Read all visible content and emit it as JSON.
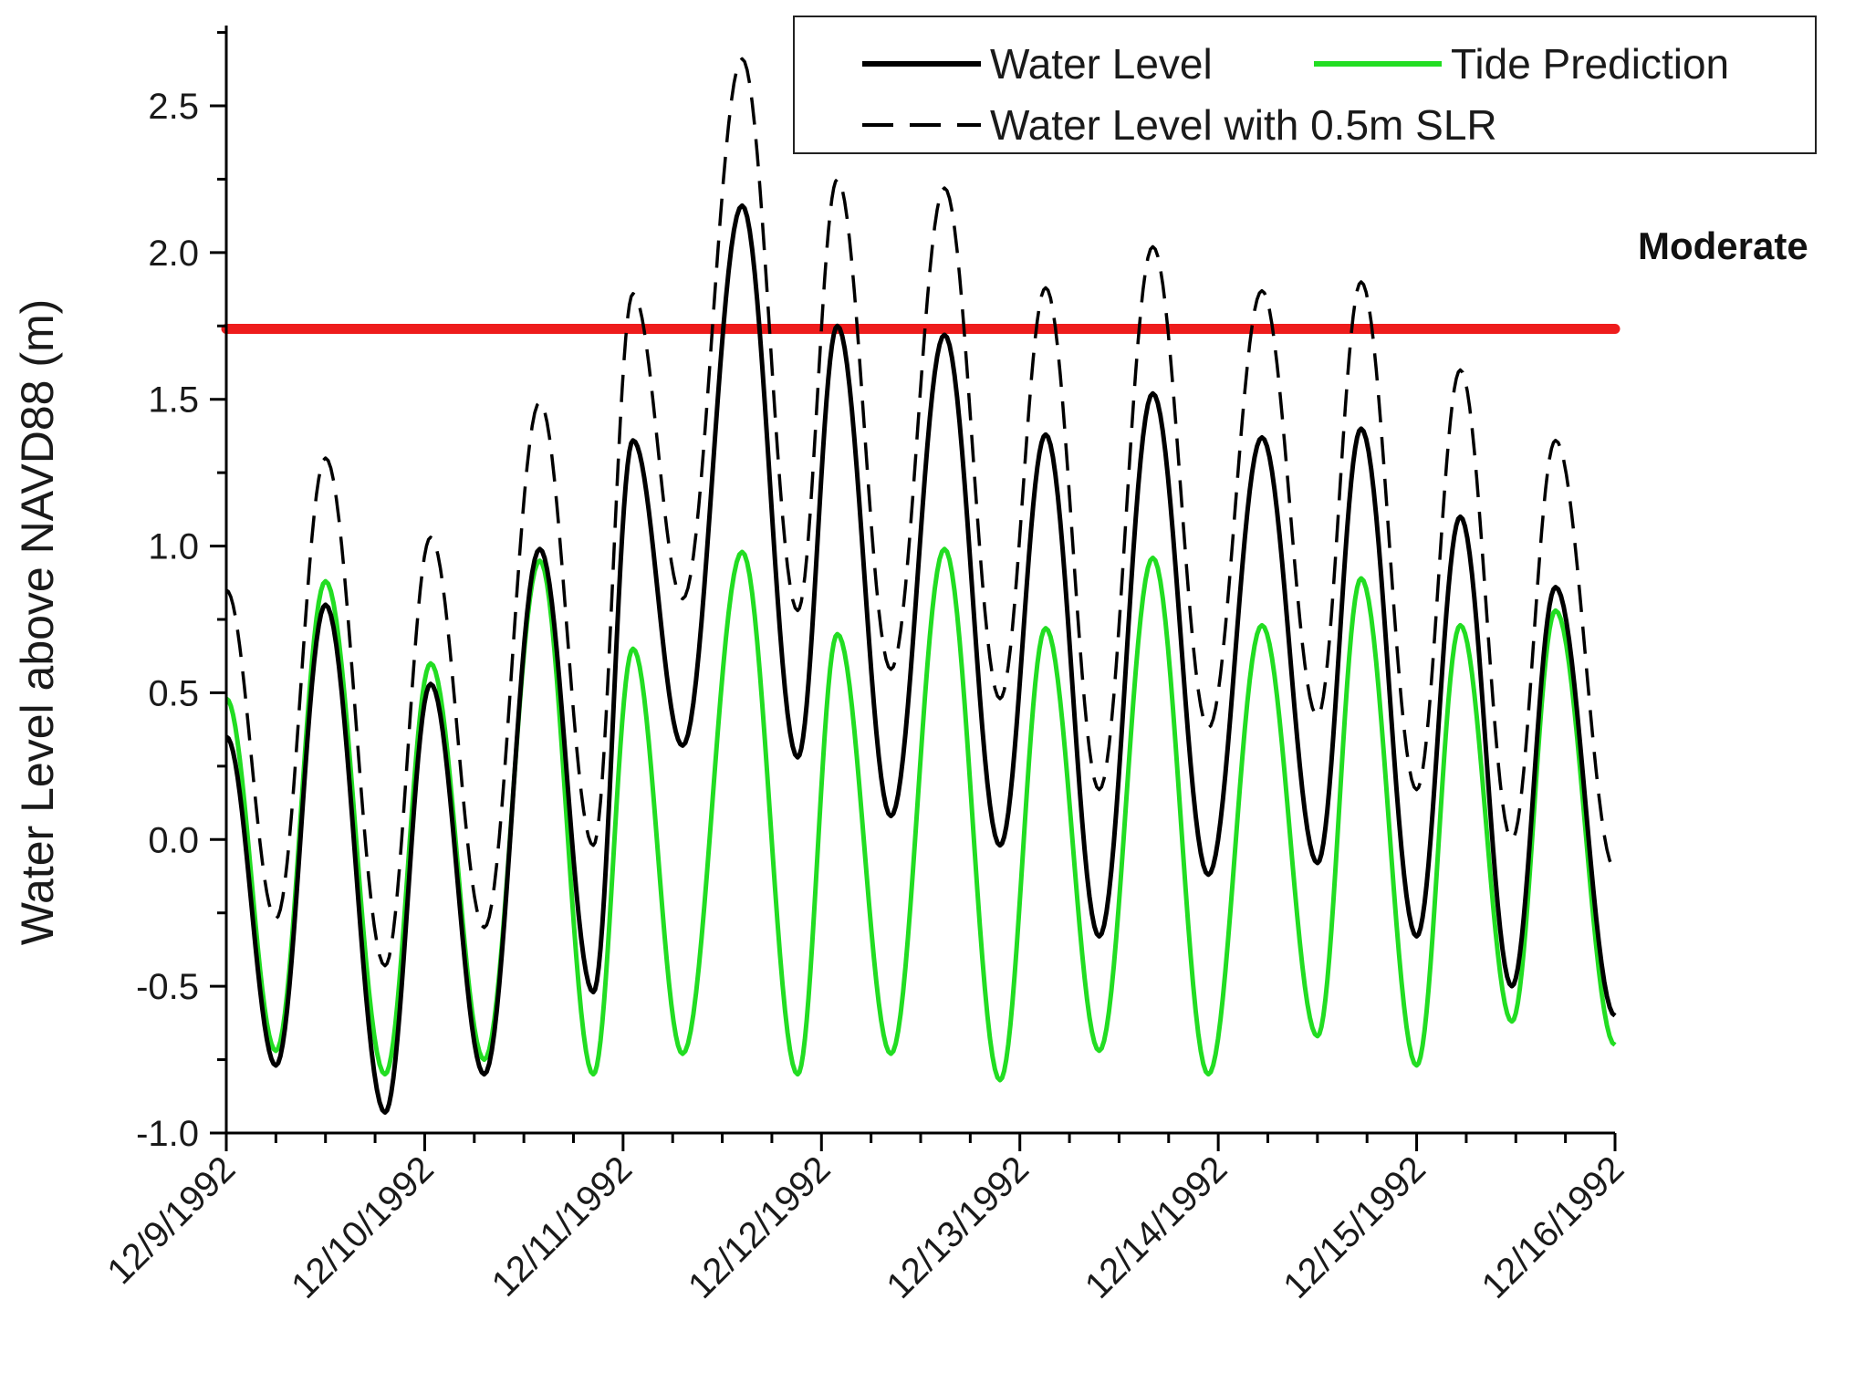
{
  "chart_data": {
    "type": "line",
    "title": "",
    "xlabel": "",
    "ylabel": "Water Level above NAVD88 (m)",
    "ylim": [
      -1.0,
      2.8
    ],
    "xlim_days": [
      0,
      7
    ],
    "grid": false,
    "legend_position": "top-right",
    "y_ticks": [
      -1.0,
      -0.5,
      0.0,
      0.5,
      1.0,
      1.5,
      2.0,
      2.5
    ],
    "y_tick_labels": [
      "-1.0",
      "-0.5",
      "0.0",
      "0.5",
      "1.0",
      "1.5",
      "2.0",
      "2.5"
    ],
    "x_tick_labels": [
      "12/9/1992",
      "12/10/1992",
      "12/11/1992",
      "12/12/1992",
      "12/13/1992",
      "12/14/1992",
      "12/15/1992",
      "12/16/1992"
    ],
    "threshold": {
      "label": "Moderate",
      "value": 1.74,
      "color": "#ee1c1c"
    },
    "series": [
      {
        "name": "Water Level",
        "color": "#000000",
        "style": "solid",
        "x": [
          0,
          0.25,
          0.5,
          0.8,
          1.03,
          1.3,
          1.58,
          1.85,
          2.05,
          2.3,
          2.6,
          2.88,
          3.08,
          3.35,
          3.62,
          3.9,
          4.13,
          4.4,
          4.67,
          4.95,
          5.22,
          5.5,
          5.72,
          6.0,
          6.22,
          6.48,
          6.7,
          7.0
        ],
        "values": [
          0.35,
          -0.77,
          0.8,
          -0.93,
          0.53,
          -0.8,
          0.99,
          -0.52,
          1.36,
          0.32,
          2.16,
          0.28,
          1.75,
          0.08,
          1.72,
          -0.02,
          1.38,
          -0.33,
          1.52,
          -0.12,
          1.37,
          -0.08,
          1.4,
          -0.33,
          1.1,
          -0.5,
          0.86,
          -0.6
        ]
      },
      {
        "name": "Tide Prediction",
        "color": "#22dd22",
        "style": "solid",
        "x": [
          0,
          0.25,
          0.5,
          0.8,
          1.03,
          1.3,
          1.58,
          1.85,
          2.05,
          2.3,
          2.6,
          2.88,
          3.08,
          3.35,
          3.62,
          3.9,
          4.13,
          4.4,
          4.67,
          4.95,
          5.22,
          5.5,
          5.72,
          6.0,
          6.22,
          6.48,
          6.7,
          7.0
        ],
        "values": [
          0.48,
          -0.72,
          0.88,
          -0.8,
          0.6,
          -0.75,
          0.95,
          -0.8,
          0.65,
          -0.73,
          0.98,
          -0.8,
          0.7,
          -0.73,
          0.99,
          -0.82,
          0.72,
          -0.72,
          0.96,
          -0.8,
          0.73,
          -0.67,
          0.89,
          -0.77,
          0.73,
          -0.62,
          0.78,
          -0.7
        ]
      },
      {
        "name": "Water Level with 0.5m SLR",
        "color": "#000000",
        "style": "dashed",
        "x": [
          0,
          0.25,
          0.5,
          0.8,
          1.03,
          1.3,
          1.58,
          1.85,
          2.05,
          2.3,
          2.6,
          2.88,
          3.08,
          3.35,
          3.62,
          3.9,
          4.13,
          4.4,
          4.67,
          4.95,
          5.22,
          5.5,
          5.72,
          6.0,
          6.22,
          6.48,
          6.7,
          7.0
        ],
        "values": [
          0.85,
          -0.27,
          1.3,
          -0.43,
          1.03,
          -0.3,
          1.49,
          -0.02,
          1.86,
          0.82,
          2.66,
          0.78,
          2.25,
          0.58,
          2.22,
          0.48,
          1.88,
          0.17,
          2.02,
          0.38,
          1.87,
          0.42,
          1.9,
          0.17,
          1.6,
          0.0,
          1.36,
          -0.1
        ]
      }
    ]
  }
}
